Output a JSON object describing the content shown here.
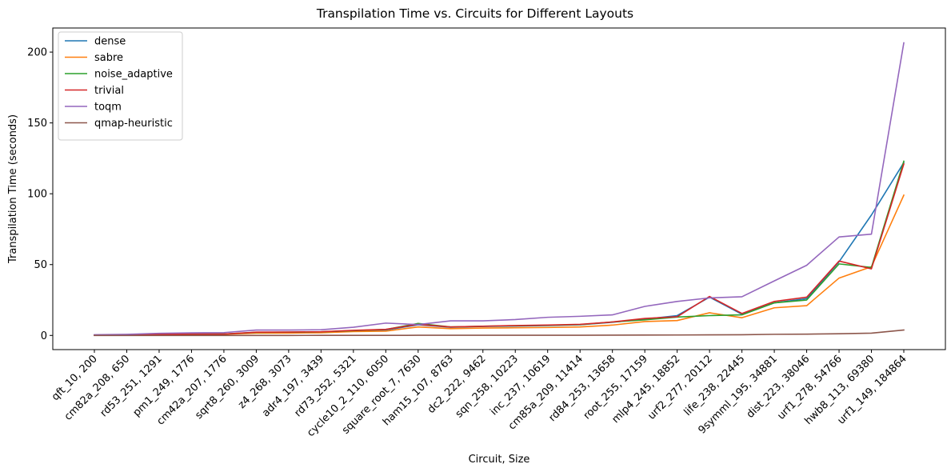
{
  "chart_data": {
    "type": "line",
    "title": "Transpilation Time vs. Circuits for Different Layouts",
    "xlabel": "Circuit, Size",
    "ylabel": "Transpilation Time (seconds)",
    "ylim": [
      -10,
      217
    ],
    "yticks": [
      0,
      50,
      100,
      150,
      200
    ],
    "grid": false,
    "legend_position": "top-left",
    "categories": [
      "qft_10, 200",
      "cm82a_208, 650",
      "rd53_251, 1291",
      "pm1_249, 1776",
      "cm42a_207, 1776",
      "sqrt8_260, 3009",
      "z4_268, 3073",
      "adr4_197, 3439",
      "rd73_252, 5321",
      "cycle10_2_110, 6050",
      "square_root_7, 7630",
      "ham15_107, 8763",
      "dc2_222, 9462",
      "sqn_258, 10223",
      "inc_237, 10619",
      "cm85a_209, 11414",
      "rd84_253, 13658",
      "root_255, 17159",
      "mlp4_245, 18852",
      "urf2_277, 20112",
      "life_238, 22445",
      "9symml_195, 34881",
      "dist_223, 38046",
      "urf1_278, 54766",
      "hwb8_113, 69380",
      "urf1_149, 184864"
    ],
    "series": [
      {
        "name": "dense",
        "color": "#1f77b4",
        "values": [
          0.3,
          0.5,
          0.8,
          1.0,
          1.0,
          2.0,
          2.1,
          2.3,
          3.2,
          3.8,
          7.5,
          5.8,
          6.3,
          6.6,
          7.0,
          7.5,
          9.3,
          11.5,
          14.0,
          27.0,
          15.0,
          23.0,
          26.0,
          52.0,
          85.0,
          122.0
        ]
      },
      {
        "name": "sabre",
        "color": "#ff7f0e",
        "values": [
          0.2,
          0.4,
          0.6,
          0.8,
          0.8,
          1.6,
          1.7,
          1.9,
          2.7,
          3.0,
          6.0,
          4.8,
          5.2,
          5.4,
          5.6,
          6.0,
          7.3,
          9.8,
          10.5,
          16.0,
          12.5,
          19.5,
          21.0,
          40.5,
          48.5,
          99.0
        ]
      },
      {
        "name": "noise_adaptive",
        "color": "#2ca02c",
        "values": [
          0.3,
          0.5,
          0.8,
          1.0,
          1.0,
          2.2,
          2.3,
          2.5,
          3.4,
          4.2,
          8.5,
          6.0,
          6.5,
          6.8,
          7.2,
          7.6,
          9.5,
          11.0,
          13.0,
          14.0,
          14.5,
          23.0,
          25.0,
          50.5,
          48.0,
          123.0
        ]
      },
      {
        "name": "trivial",
        "color": "#d62728",
        "values": [
          0.3,
          0.5,
          0.8,
          1.0,
          1.0,
          2.3,
          2.4,
          2.6,
          3.6,
          4.3,
          7.8,
          6.0,
          6.5,
          7.0,
          7.3,
          7.8,
          9.5,
          12.0,
          13.2,
          27.5,
          15.5,
          24.0,
          27.0,
          52.5,
          47.0,
          121.0
        ]
      },
      {
        "name": "toqm",
        "color": "#9467bd",
        "values": [
          0.5,
          0.8,
          1.5,
          1.8,
          2.0,
          3.8,
          3.8,
          4.0,
          5.8,
          8.7,
          7.7,
          10.3,
          10.3,
          11.2,
          12.8,
          13.5,
          14.5,
          20.5,
          24.0,
          26.5,
          27.3,
          38.5,
          49.5,
          69.5,
          71.5,
          206.5
        ]
      },
      {
        "name": "qmap-heuristic",
        "color": "#8c564b",
        "values": [
          0.0,
          0.0,
          0.0,
          0.0,
          0.0,
          0.0,
          0.0,
          0.05,
          0.05,
          0.05,
          0.1,
          0.1,
          0.1,
          0.1,
          0.15,
          0.15,
          0.2,
          0.25,
          0.3,
          0.4,
          0.5,
          0.8,
          0.9,
          1.2,
          1.6,
          3.8
        ]
      }
    ]
  }
}
